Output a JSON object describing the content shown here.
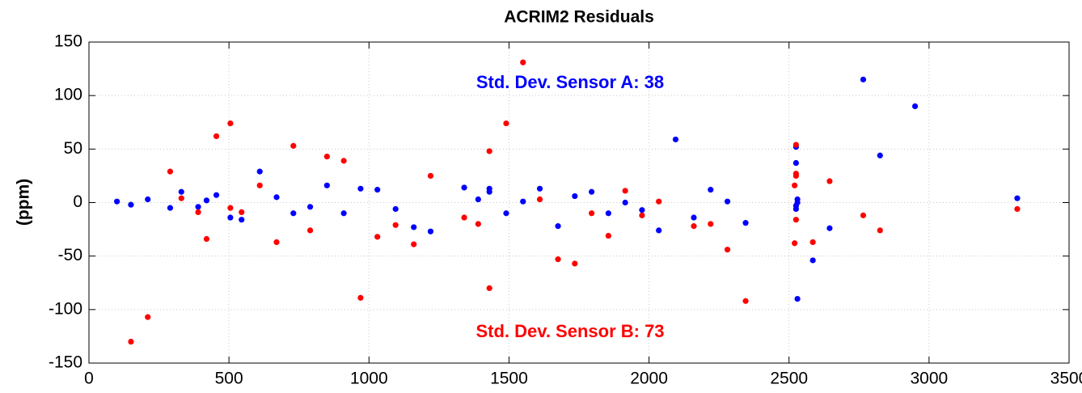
{
  "chart_data": {
    "type": "scatter",
    "title": "ACRIM2 Residuals",
    "y_label": "(ppm)",
    "annotations": [
      {
        "text": "Std. Dev.  Sensor A: 38",
        "color": "#0000ff"
      },
      {
        "text": "Std. Dev.  Sensor B: 73",
        "color": "#ff0000"
      }
    ],
    "xlim": [
      0,
      3500
    ],
    "xticks": [
      0,
      500,
      1000,
      1500,
      2000,
      2500,
      3000,
      3500
    ],
    "ylim": [
      -150,
      150
    ],
    "yticks": [
      -150,
      -100,
      -50,
      0,
      50,
      100,
      150
    ],
    "grid": true,
    "series": [
      {
        "color": "#0000ff",
        "x": [
          100,
          150,
          210,
          290,
          330,
          390,
          420,
          455,
          505,
          545,
          610,
          670,
          730,
          790,
          850,
          910,
          970,
          1030,
          1095,
          1160,
          1220,
          1340,
          1390,
          1430,
          1430,
          1490,
          1550,
          1610,
          1675,
          1735,
          1795,
          1855,
          1915,
          1975,
          2035,
          2095,
          2160,
          2220,
          2280,
          2345,
          2525,
          2525,
          2530,
          2530,
          2525,
          2525,
          2530,
          2585,
          2645,
          2765,
          2825,
          2950,
          3315
        ],
        "values": [
          1,
          -2,
          3,
          -5,
          10,
          -4,
          2,
          7,
          -14,
          -16,
          29,
          5,
          -10,
          -4,
          16,
          -10,
          13,
          12,
          -6,
          -23,
          -27,
          14,
          3,
          13,
          10,
          -10,
          1,
          13,
          -22,
          6,
          10,
          -10,
          0,
          -7,
          -26,
          59,
          -14,
          12,
          1,
          -19,
          52,
          37,
          3,
          0,
          -3,
          -6,
          -90,
          -54,
          -24,
          115,
          44,
          90,
          4
        ]
      },
      {
        "color": "#ff0000",
        "x": [
          150,
          210,
          290,
          330,
          390,
          420,
          455,
          505,
          505,
          545,
          610,
          670,
          730,
          790,
          850,
          910,
          970,
          1030,
          1095,
          1160,
          1220,
          1340,
          1390,
          1430,
          1430,
          1490,
          1550,
          1610,
          1675,
          1735,
          1795,
          1855,
          1915,
          1975,
          2035,
          2160,
          2220,
          2280,
          2345,
          2520,
          2525,
          2525,
          2525,
          2525,
          2520,
          2585,
          2645,
          2765,
          2825,
          3315
        ],
        "values": [
          -130,
          -107,
          29,
          4,
          -9,
          -34,
          62,
          74,
          -5,
          -9,
          16,
          -37,
          53,
          -26,
          43,
          39,
          -89,
          -32,
          -21,
          -39,
          25,
          -14,
          -20,
          48,
          -80,
          74,
          131,
          3,
          -53,
          -57,
          -10,
          -31,
          11,
          -12,
          1,
          -22,
          -20,
          -44,
          -92,
          16,
          54,
          27,
          25,
          -16,
          -38,
          -37,
          20,
          -12,
          -26,
          -6
        ]
      }
    ]
  }
}
